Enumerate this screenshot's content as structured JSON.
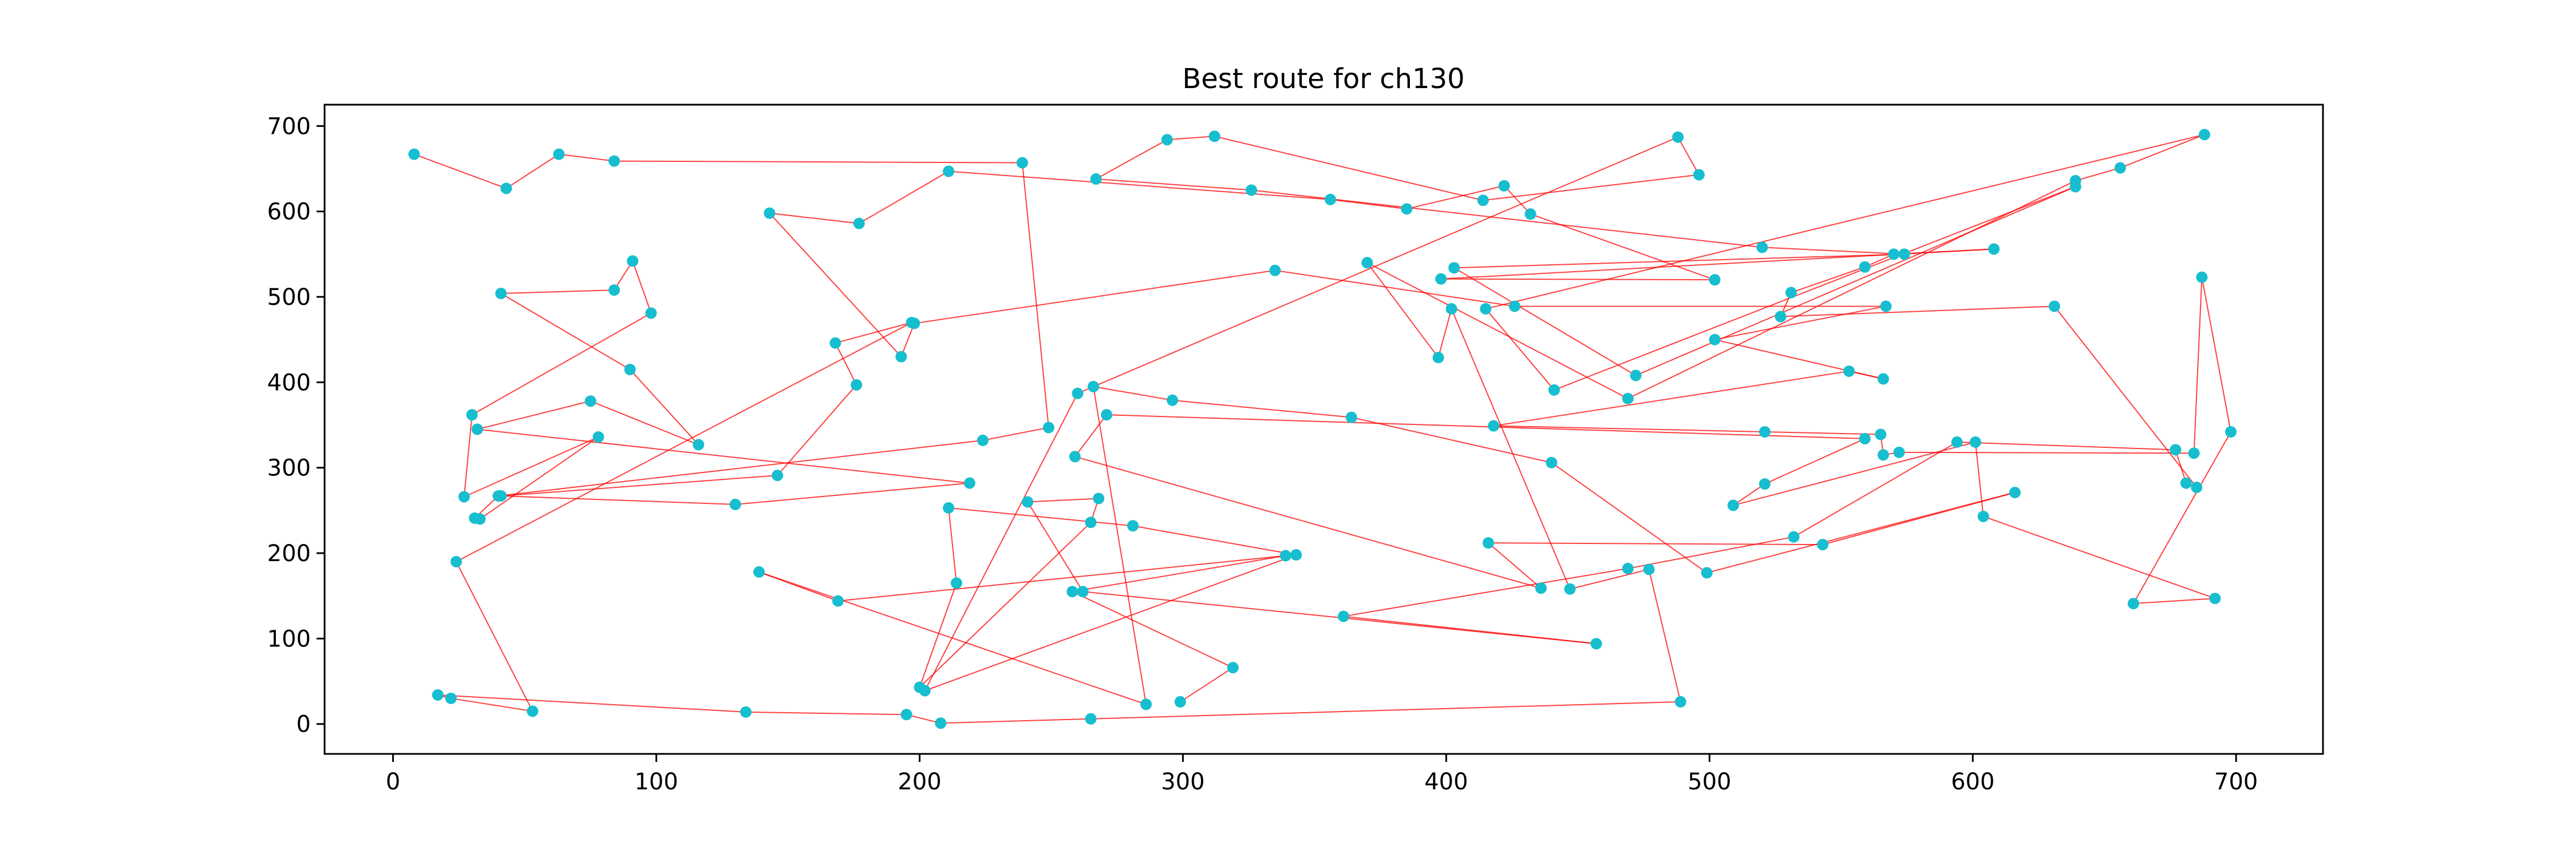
{
  "chart_data": {
    "type": "line",
    "title": "Best route for ch130",
    "xlabel": "",
    "ylabel": "",
    "xlim": [
      -26,
      733
    ],
    "ylim": [
      -35,
      725
    ],
    "xticks": [
      0,
      100,
      200,
      300,
      400,
      500,
      600,
      700
    ],
    "yticks": [
      0,
      100,
      200,
      300,
      400,
      500,
      600,
      700
    ],
    "grid": false,
    "line_color": "#ff0000",
    "marker_color": "#17becf",
    "route": [
      [
        8,
        667
      ],
      [
        43,
        627
      ],
      [
        63,
        667
      ],
      [
        84,
        659
      ],
      [
        239,
        657
      ],
      [
        249,
        347
      ],
      [
        224,
        332
      ],
      [
        40,
        267
      ],
      [
        31,
        241
      ],
      [
        33,
        240
      ],
      [
        78,
        336
      ],
      [
        27,
        266
      ],
      [
        30,
        362
      ],
      [
        98,
        481
      ],
      [
        91,
        542
      ],
      [
        84,
        508
      ],
      [
        41,
        504
      ],
      [
        90,
        415
      ],
      [
        116,
        327
      ],
      [
        75,
        378
      ],
      [
        32,
        345
      ],
      [
        219,
        282
      ],
      [
        130,
        257
      ],
      [
        41,
        267
      ],
      [
        146,
        291
      ],
      [
        176,
        397
      ],
      [
        168,
        446
      ],
      [
        197,
        470
      ],
      [
        24,
        190
      ],
      [
        53,
        15
      ],
      [
        22,
        30
      ],
      [
        17,
        34
      ],
      [
        134,
        14
      ],
      [
        195,
        11
      ],
      [
        208,
        1
      ],
      [
        265,
        6
      ],
      [
        489,
        26
      ],
      [
        477,
        181
      ],
      [
        447,
        158
      ],
      [
        402,
        486
      ],
      [
        397,
        429
      ],
      [
        370,
        540
      ],
      [
        469,
        381
      ],
      [
        639,
        636
      ],
      [
        656,
        651
      ],
      [
        688,
        690
      ],
      [
        415,
        486
      ],
      [
        441,
        391
      ],
      [
        639,
        629
      ],
      [
        472,
        408
      ],
      [
        403,
        534
      ],
      [
        574,
        550
      ],
      [
        520,
        558
      ],
      [
        326,
        625
      ],
      [
        267,
        638
      ],
      [
        294,
        684
      ],
      [
        312,
        688
      ],
      [
        414,
        613
      ],
      [
        496,
        643
      ],
      [
        488,
        687
      ],
      [
        260,
        387
      ],
      [
        202,
        39
      ],
      [
        343,
        198
      ],
      [
        281,
        232
      ],
      [
        211,
        253
      ],
      [
        214,
        165
      ],
      [
        200,
        43
      ],
      [
        265,
        236
      ],
      [
        268,
        264
      ],
      [
        241,
        260
      ],
      [
        262,
        155
      ],
      [
        457,
        94
      ],
      [
        361,
        126
      ],
      [
        469,
        182
      ],
      [
        532,
        219
      ],
      [
        594,
        330
      ],
      [
        677,
        321
      ],
      [
        681,
        282
      ],
      [
        685,
        277
      ],
      [
        631,
        489
      ],
      [
        527,
        477
      ],
      [
        531,
        505
      ],
      [
        559,
        535
      ],
      [
        570,
        550
      ],
      [
        608,
        556
      ],
      [
        398,
        521
      ],
      [
        502,
        520
      ],
      [
        432,
        597
      ],
      [
        422,
        630
      ],
      [
        385,
        603
      ],
      [
        356,
        614
      ],
      [
        211,
        647
      ],
      [
        177,
        586
      ],
      [
        143,
        598
      ],
      [
        193,
        430
      ],
      [
        198,
        469
      ],
      [
        335,
        531
      ],
      [
        426,
        489
      ],
      [
        567,
        489
      ],
      [
        502,
        450
      ],
      [
        566,
        404
      ],
      [
        553,
        413
      ],
      [
        418,
        349
      ],
      [
        521,
        342
      ],
      [
        565,
        339
      ],
      [
        566,
        315
      ],
      [
        572,
        318
      ],
      [
        684,
        317
      ],
      [
        687,
        523
      ],
      [
        698,
        342
      ],
      [
        661,
        141
      ],
      [
        692,
        147
      ],
      [
        604,
        243
      ],
      [
        601,
        330
      ],
      [
        509,
        256
      ],
      [
        521,
        281
      ],
      [
        559,
        334
      ],
      [
        271,
        362
      ],
      [
        259,
        313
      ],
      [
        436,
        159
      ],
      [
        416,
        212
      ],
      [
        543,
        210
      ],
      [
        616,
        271
      ],
      [
        499,
        177
      ],
      [
        440,
        306
      ],
      [
        364,
        359
      ],
      [
        296,
        379
      ],
      [
        266,
        395
      ],
      [
        286,
        23
      ],
      [
        139,
        178
      ],
      [
        169,
        144
      ],
      [
        339,
        197
      ],
      [
        258,
        155
      ],
      [
        319,
        66
      ],
      [
        299,
        26
      ]
    ]
  }
}
